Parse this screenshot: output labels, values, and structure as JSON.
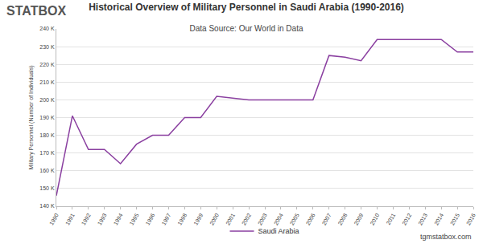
{
  "chart_data": {
    "type": "line",
    "title": "Historical Overview of Military Personnel in Saudi Arabia (1990-2016)",
    "subtitle": "Data Source: Our World in Data",
    "y_label": "Military Personnel (Number of Individuals)",
    "annotations": [
      {
        "text": "STATBOX"
      },
      {
        "text": "tgmstatbox.com"
      }
    ],
    "x": [
      1990,
      1991,
      1992,
      1993,
      1994,
      1995,
      1996,
      1997,
      1998,
      1999,
      2000,
      2001,
      2002,
      2003,
      2004,
      2005,
      2006,
      2007,
      2008,
      2009,
      2010,
      2011,
      2012,
      2013,
      2014,
      2015,
      2016
    ],
    "series": [
      {
        "name": "Saudi Arabia",
        "color": "#8a3fa0",
        "values": [
          146000,
          191000,
          172000,
          172000,
          164000,
          175000,
          180000,
          180000,
          190000,
          190000,
          202000,
          201000,
          200000,
          200000,
          200000,
          200000,
          200000,
          225000,
          224000,
          222000,
          234000,
          234000,
          234000,
          234000,
          234000,
          227000,
          227000
        ]
      }
    ],
    "xlim": [
      1990,
      2016
    ],
    "xticks": [
      1990,
      1991,
      1992,
      1993,
      1994,
      1995,
      1996,
      1997,
      1998,
      1999,
      2000,
      2001,
      2002,
      2003,
      2004,
      2005,
      2006,
      2007,
      2008,
      2009,
      2010,
      2011,
      2012,
      2013,
      2014,
      2015,
      2016
    ],
    "ylim": [
      140000,
      240000
    ],
    "yticks": [
      {
        "value": 140000,
        "label": "140 K"
      },
      {
        "value": 150000,
        "label": "150 K"
      },
      {
        "value": 160000,
        "label": "160 K"
      },
      {
        "value": 170000,
        "label": "170 K"
      },
      {
        "value": 180000,
        "label": "180 K"
      },
      {
        "value": 190000,
        "label": "190 K"
      },
      {
        "value": 200000,
        "label": "200 K"
      },
      {
        "value": 210000,
        "label": "210 K"
      },
      {
        "value": 220000,
        "label": "220 K"
      },
      {
        "value": 230000,
        "label": "230 K"
      },
      {
        "value": 240000,
        "label": "240 K"
      }
    ],
    "grid": true,
    "legend": "bottom"
  }
}
